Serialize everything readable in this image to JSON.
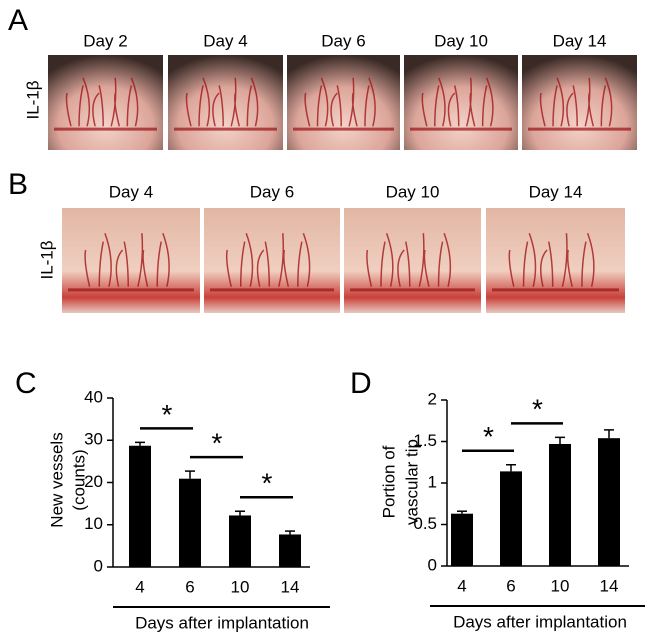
{
  "panels": {
    "A": {
      "label": "A",
      "row_label": "IL-1β",
      "days": [
        "Day 2",
        "Day 4",
        "Day 6",
        "Day 10",
        "Day 14"
      ]
    },
    "B": {
      "label": "B",
      "row_label": "IL-1β",
      "days": [
        "Day 4",
        "Day 6",
        "Day 10",
        "Day 14"
      ]
    }
  },
  "chart_data": [
    {
      "type": "bar",
      "panel": "C",
      "categories": [
        "4",
        "6",
        "10",
        "14"
      ],
      "values": [
        28.7,
        20.9,
        12.2,
        7.7
      ],
      "errors": [
        0.8,
        1.8,
        1.0,
        0.8
      ],
      "color": "#000000",
      "ylim": [
        0,
        40
      ],
      "yticks": [
        0,
        10,
        20,
        30,
        40
      ],
      "y_label": [
        "New vessels",
        "(counts)"
      ],
      "x_label": "Days after implantation",
      "significance": [
        {
          "from": 0,
          "to": 1,
          "label": "*"
        },
        {
          "from": 1,
          "to": 2,
          "label": "*"
        },
        {
          "from": 2,
          "to": 3,
          "label": "*"
        }
      ]
    },
    {
      "type": "bar",
      "panel": "D",
      "categories": [
        "4",
        "6",
        "10",
        "14"
      ],
      "values": [
        0.63,
        1.14,
        1.47,
        1.54
      ],
      "errors": [
        0.03,
        0.08,
        0.08,
        0.1
      ],
      "color": "#000000",
      "ylim": [
        0,
        2
      ],
      "yticks": [
        0,
        0.5,
        1,
        1.5,
        2
      ],
      "y_label": [
        "Portion of",
        "vascular tip"
      ],
      "x_label": "Days after implantation",
      "significance": [
        {
          "from": 0,
          "to": 1,
          "label": "*"
        },
        {
          "from": 1,
          "to": 2,
          "label": "*"
        }
      ]
    }
  ]
}
